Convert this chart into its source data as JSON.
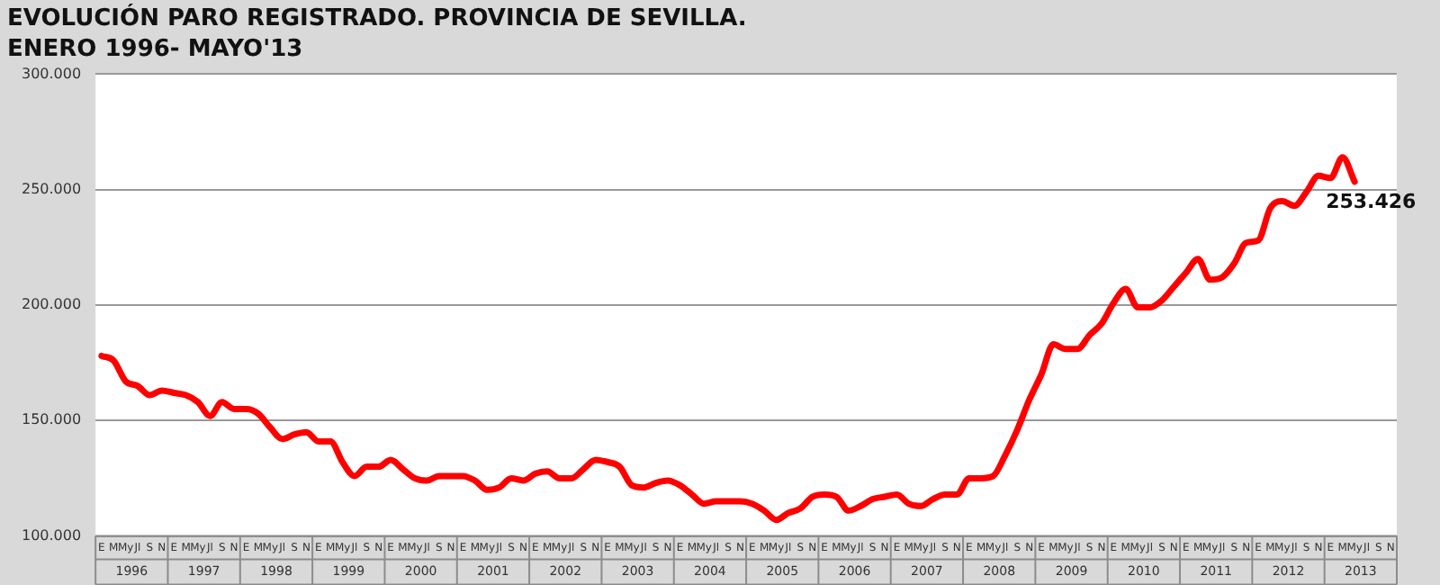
{
  "chart_data": {
    "type": "line",
    "title": "EVOLUCIÓN PARO REGISTRADO. PROVINCIA DE SEVILLA.",
    "subtitle": "ENERO 1996- MAYO'13",
    "categories": [
      "E",
      "M",
      "My",
      "Jl",
      "S",
      "N",
      "E",
      "M",
      "My",
      "Jl",
      "S",
      "N",
      "E",
      "M",
      "My",
      "Jl",
      "S",
      "N",
      "E",
      "M",
      "My",
      "Jl",
      "S",
      "N",
      "E",
      "M",
      "My",
      "Jl",
      "S",
      "N",
      "E",
      "M",
      "My",
      "Jl",
      "S",
      "N",
      "E",
      "M",
      "My",
      "Jl",
      "S",
      "N",
      "E",
      "M",
      "My",
      "Jl",
      "S",
      "N",
      "E",
      "M",
      "My",
      "Jl",
      "S",
      "N",
      "E",
      "M",
      "My",
      "Jl",
      "S",
      "N",
      "E",
      "M",
      "My",
      "Jl",
      "S",
      "N",
      "E",
      "M",
      "My",
      "Jl",
      "S",
      "N",
      "E",
      "M",
      "My",
      "Jl",
      "S",
      "N",
      "E",
      "M",
      "My",
      "Jl",
      "S",
      "N",
      "E",
      "M",
      "My",
      "Jl",
      "S",
      "N",
      "E",
      "M",
      "My",
      "Jl",
      "S",
      "N",
      "E",
      "M",
      "My",
      "Jl",
      "S",
      "N",
      "E",
      "M",
      "My",
      "Jl",
      "S",
      "N"
    ],
    "series": [
      {
        "color": "#ff0000",
        "values": [
          178000,
          176000,
          167000,
          165000,
          161000,
          163000,
          162000,
          161000,
          158000,
          152000,
          158000,
          155000,
          155000,
          153000,
          147000,
          142000,
          144000,
          145000,
          141000,
          141000,
          132000,
          126000,
          130000,
          130000,
          133000,
          129000,
          125000,
          124000,
          126000,
          126000,
          126000,
          124000,
          120000,
          121000,
          125000,
          124000,
          127000,
          128000,
          125000,
          125000,
          129000,
          133000,
          132000,
          130000,
          122000,
          121000,
          123000,
          124000,
          122000,
          118000,
          114000,
          115000,
          115000,
          115000,
          114000,
          111000,
          107000,
          110000,
          112000,
          117000,
          118000,
          117000,
          111000,
          113000,
          116000,
          117000,
          118000,
          114000,
          113000,
          116000,
          118000,
          118000,
          125000,
          125000,
          126000,
          135000,
          146000,
          159000,
          170000,
          183000,
          181000,
          181000,
          187000,
          192000,
          201000,
          207000,
          199000,
          199000,
          202000,
          208000,
          214000,
          220000,
          211000,
          212000,
          218000,
          227000,
          228000,
          242000,
          245000,
          243000,
          249000,
          256000,
          255000,
          264000,
          253426,
          null,
          null,
          null
        ],
        "value_labels": [
          null,
          null,
          null,
          null,
          null,
          null,
          null,
          null,
          null,
          null,
          null,
          null,
          null,
          null,
          null,
          null,
          null,
          null,
          null,
          null,
          null,
          null,
          null,
          null,
          null,
          null,
          null,
          null,
          null,
          null,
          null,
          null,
          null,
          null,
          null,
          null,
          null,
          null,
          null,
          null,
          null,
          null,
          null,
          null,
          null,
          null,
          null,
          null,
          null,
          null,
          null,
          null,
          null,
          null,
          null,
          null,
          null,
          null,
          null,
          null,
          null,
          null,
          null,
          null,
          null,
          null,
          null,
          null,
          null,
          null,
          null,
          null,
          null,
          null,
          null,
          null,
          null,
          null,
          null,
          null,
          null,
          null,
          null,
          null,
          null,
          null,
          null,
          null,
          null,
          null,
          null,
          null,
          null,
          null,
          null,
          null,
          null,
          null,
          null,
          null,
          null,
          null,
          null,
          null,
          "253.426",
          null,
          null,
          null
        ]
      }
    ],
    "annotations": [
      "1996",
      "1997",
      "1998",
      "1999",
      "2000",
      "2001",
      "2002",
      "2003",
      "2004",
      "2005",
      "2006",
      "2007",
      "2008",
      "2009",
      "2010",
      "2011",
      "2012",
      "2013"
    ],
    "ylim": [
      100000,
      300000
    ],
    "yticks": [
      {
        "value": 100000,
        "label": "100.000"
      },
      {
        "value": 150000,
        "label": "150.000"
      },
      {
        "value": 200000,
        "label": "200.000"
      },
      {
        "value": 250000,
        "label": "250.000"
      },
      {
        "value": 300000,
        "label": "300.000"
      }
    ],
    "grid": "y",
    "legend": false,
    "marker": "none",
    "line_style": "solid"
  }
}
